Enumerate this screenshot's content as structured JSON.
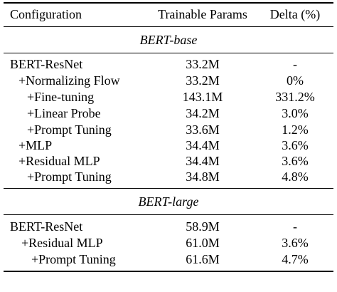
{
  "header": {
    "col1": "Configuration",
    "col2": "Trainable Params",
    "col3": "Delta (%)"
  },
  "sections": [
    {
      "title": "BERT-base",
      "rows": [
        {
          "config": "BERT-ResNet",
          "params": "33.2M",
          "delta": "-"
        },
        {
          "config": "+Normalizing Flow",
          "params": "33.2M",
          "delta": "0%"
        },
        {
          "config": "+Fine-tuning",
          "params": "143.1M",
          "delta": "331.2%"
        },
        {
          "config": "+Linear Probe",
          "params": "34.2M",
          "delta": "3.0%"
        },
        {
          "config": "+Prompt Tuning",
          "params": "33.6M",
          "delta": "1.2%"
        },
        {
          "config": "+MLP",
          "params": "34.4M",
          "delta": "3.6%"
        },
        {
          "config": "+Residual MLP",
          "params": "34.4M",
          "delta": "3.6%"
        },
        {
          "config": "+Prompt Tuning",
          "params": "34.8M",
          "delta": "4.8%"
        }
      ]
    },
    {
      "title": "BERT-large",
      "rows": [
        {
          "config": "BERT-ResNet",
          "params": "58.9M",
          "delta": "-"
        },
        {
          "config": "+Residual MLP",
          "params": "61.0M",
          "delta": "3.6%"
        },
        {
          "config": "+Prompt Tuning",
          "params": "61.6M",
          "delta": "4.7%"
        }
      ]
    }
  ]
}
